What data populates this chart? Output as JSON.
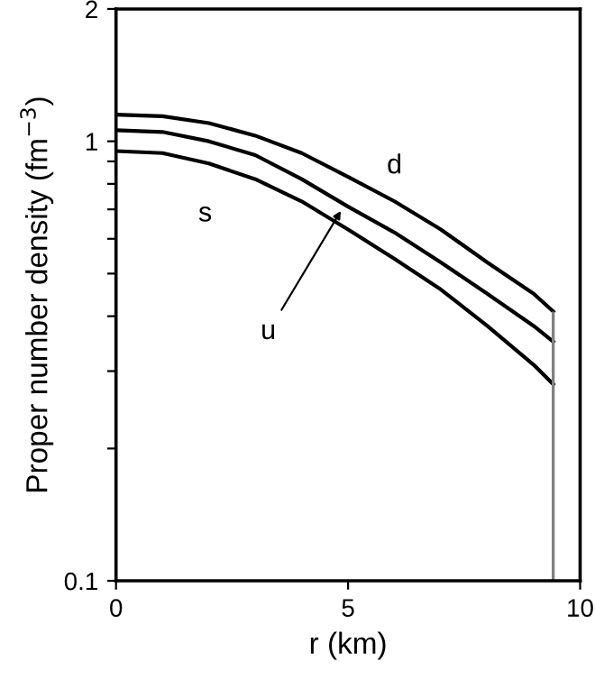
{
  "chart_data": {
    "type": "line",
    "xlabel": "r (km)",
    "ylabel": "Proper number density (fm$^{−3}$)",
    "x": [
      0,
      1,
      2,
      3,
      4,
      5,
      6,
      7,
      8,
      9,
      9.42
    ],
    "series": [
      {
        "name": "d",
        "color": "#000000",
        "values": [
          1.15,
          1.14,
          1.1,
          1.03,
          0.94,
          0.83,
          0.73,
          0.63,
          0.53,
          0.45,
          0.41
        ]
      },
      {
        "color": "#000000",
        "values": [
          1.06,
          1.05,
          1.0,
          0.93,
          0.82,
          0.71,
          0.62,
          0.53,
          0.45,
          0.38,
          0.35
        ]
      },
      {
        "name": "s",
        "color": "#000000",
        "values": [
          0.95,
          0.94,
          0.89,
          0.82,
          0.73,
          0.63,
          0.54,
          0.46,
          0.38,
          0.31,
          0.28
        ]
      }
    ],
    "annotations": [
      {
        "text": "u",
        "x": 4.9,
        "y": 0.71
      }
    ],
    "ref_lines": [
      {
        "axis": "x",
        "value": 9.42,
        "color": "#808080"
      }
    ],
    "log": "y",
    "xlim": [
      0,
      10
    ],
    "ylim": [
      0.1,
      2
    ],
    "xticks": [
      0,
      5,
      10
    ],
    "yticks": [
      0.1,
      {
        "value": 0.2,
        "label": null
      },
      {
        "value": 0.3,
        "label": null
      },
      {
        "value": 0.4,
        "label": null
      },
      {
        "value": 0.5,
        "label": null
      },
      {
        "value": 0.6,
        "label": null
      },
      {
        "value": 0.7,
        "label": null
      },
      {
        "value": 0.8,
        "label": null
      },
      {
        "value": 0.9,
        "label": null
      },
      1,
      2
    ],
    "grid": false,
    "legend": false,
    "marker": "none",
    "line_style": "solid"
  }
}
